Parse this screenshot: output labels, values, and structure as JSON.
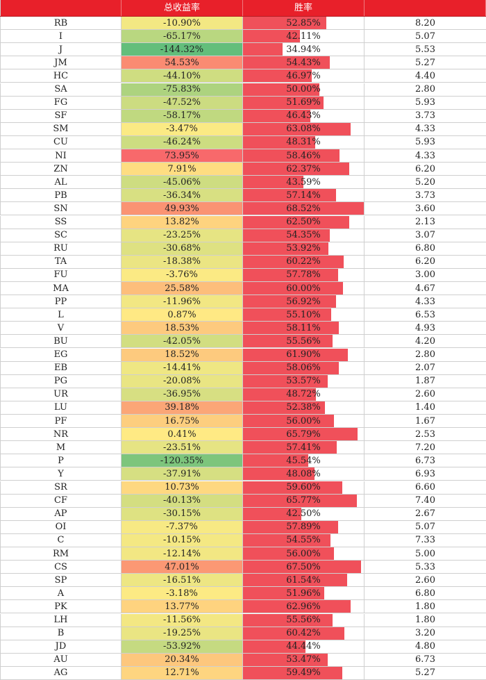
{
  "header": {
    "col0": "",
    "col1": "总收益率",
    "col2": "胜率",
    "col3": ""
  },
  "colors": {
    "header_bg": "#e8202a",
    "win_bar": "#f0505a",
    "return_scale": [
      "#63be7b",
      "#ffeb84",
      "#f8696b"
    ]
  },
  "rows": [
    {
      "code": "RB",
      "ret": "-10.90%",
      "ret_val": -10.9,
      "win": "52.85%",
      "win_val": 52.85,
      "val": "8.20"
    },
    {
      "code": "I",
      "ret": "-65.17%",
      "ret_val": -65.17,
      "win": "42.11%",
      "win_val": 42.11,
      "val": "5.07"
    },
    {
      "code": "J",
      "ret": "-144.32%",
      "ret_val": -144.32,
      "win": "34.94%",
      "win_val": 34.94,
      "val": "5.53"
    },
    {
      "code": "JM",
      "ret": "54.53%",
      "ret_val": 54.53,
      "win": "54.43%",
      "win_val": 54.43,
      "val": "5.27"
    },
    {
      "code": "HC",
      "ret": "-44.10%",
      "ret_val": -44.1,
      "win": "46.97%",
      "win_val": 46.97,
      "val": "4.40"
    },
    {
      "code": "SA",
      "ret": "-75.83%",
      "ret_val": -75.83,
      "win": "50.00%",
      "win_val": 50.0,
      "val": "2.80"
    },
    {
      "code": "FG",
      "ret": "-47.52%",
      "ret_val": -47.52,
      "win": "51.69%",
      "win_val": 51.69,
      "val": "5.93"
    },
    {
      "code": "SF",
      "ret": "-58.17%",
      "ret_val": -58.17,
      "win": "46.43%",
      "win_val": 46.43,
      "val": "3.73"
    },
    {
      "code": "SM",
      "ret": "-3.47%",
      "ret_val": -3.47,
      "win": "63.08%",
      "win_val": 63.08,
      "val": "4.33"
    },
    {
      "code": "CU",
      "ret": "-46.24%",
      "ret_val": -46.24,
      "win": "48.31%",
      "win_val": 48.31,
      "val": "5.93"
    },
    {
      "code": "NI",
      "ret": "73.95%",
      "ret_val": 73.95,
      "win": "58.46%",
      "win_val": 58.46,
      "val": "4.33"
    },
    {
      "code": "ZN",
      "ret": "7.91%",
      "ret_val": 7.91,
      "win": "62.37%",
      "win_val": 62.37,
      "val": "6.20"
    },
    {
      "code": "AL",
      "ret": "-45.06%",
      "ret_val": -45.06,
      "win": "43.59%",
      "win_val": 43.59,
      "val": "5.20"
    },
    {
      "code": "PB",
      "ret": "-36.34%",
      "ret_val": -36.34,
      "win": "57.14%",
      "win_val": 57.14,
      "val": "3.73"
    },
    {
      "code": "SN",
      "ret": "49.93%",
      "ret_val": 49.93,
      "win": "68.52%",
      "win_val": 68.52,
      "val": "3.60"
    },
    {
      "code": "SS",
      "ret": "13.82%",
      "ret_val": 13.82,
      "win": "62.50%",
      "win_val": 62.5,
      "val": "2.13"
    },
    {
      "code": "SC",
      "ret": "-23.25%",
      "ret_val": -23.25,
      "win": "54.35%",
      "win_val": 54.35,
      "val": "3.07"
    },
    {
      "code": "RU",
      "ret": "-30.68%",
      "ret_val": -30.68,
      "win": "53.92%",
      "win_val": 53.92,
      "val": "6.80"
    },
    {
      "code": "TA",
      "ret": "-18.38%",
      "ret_val": -18.38,
      "win": "60.22%",
      "win_val": 60.22,
      "val": "6.20"
    },
    {
      "code": "FU",
      "ret": "-3.76%",
      "ret_val": -3.76,
      "win": "57.78%",
      "win_val": 57.78,
      "val": "3.00"
    },
    {
      "code": "MA",
      "ret": "25.58%",
      "ret_val": 25.58,
      "win": "60.00%",
      "win_val": 60.0,
      "val": "4.67"
    },
    {
      "code": "PP",
      "ret": "-11.96%",
      "ret_val": -11.96,
      "win": "56.92%",
      "win_val": 56.92,
      "val": "4.33"
    },
    {
      "code": "L",
      "ret": "0.87%",
      "ret_val": 0.87,
      "win": "55.10%",
      "win_val": 55.1,
      "val": "6.53"
    },
    {
      "code": "V",
      "ret": "18.53%",
      "ret_val": 18.53,
      "win": "58.11%",
      "win_val": 58.11,
      "val": "4.93"
    },
    {
      "code": "BU",
      "ret": "-42.05%",
      "ret_val": -42.05,
      "win": "55.56%",
      "win_val": 55.56,
      "val": "4.20"
    },
    {
      "code": "EG",
      "ret": "18.52%",
      "ret_val": 18.52,
      "win": "61.90%",
      "win_val": 61.9,
      "val": "2.80"
    },
    {
      "code": "EB",
      "ret": "-14.41%",
      "ret_val": -14.41,
      "win": "58.06%",
      "win_val": 58.06,
      "val": "2.07"
    },
    {
      "code": "PG",
      "ret": "-20.08%",
      "ret_val": -20.08,
      "win": "53.57%",
      "win_val": 53.57,
      "val": "1.87"
    },
    {
      "code": "UR",
      "ret": "-36.95%",
      "ret_val": -36.95,
      "win": "48.72%",
      "win_val": 48.72,
      "val": "2.60"
    },
    {
      "code": "LU",
      "ret": "39.18%",
      "ret_val": 39.18,
      "win": "52.38%",
      "win_val": 52.38,
      "val": "1.40"
    },
    {
      "code": "PF",
      "ret": "16.75%",
      "ret_val": 16.75,
      "win": "56.00%",
      "win_val": 56.0,
      "val": "1.67"
    },
    {
      "code": "NR",
      "ret": "0.41%",
      "ret_val": 0.41,
      "win": "65.79%",
      "win_val": 65.79,
      "val": "2.53"
    },
    {
      "code": "M",
      "ret": "-23.51%",
      "ret_val": -23.51,
      "win": "57.41%",
      "win_val": 57.41,
      "val": "7.20"
    },
    {
      "code": "P",
      "ret": "-120.35%",
      "ret_val": -120.35,
      "win": "45.54%",
      "win_val": 45.54,
      "val": "6.73"
    },
    {
      "code": "Y",
      "ret": "-37.91%",
      "ret_val": -37.91,
      "win": "48.08%",
      "win_val": 48.08,
      "val": "6.93"
    },
    {
      "code": "SR",
      "ret": "10.73%",
      "ret_val": 10.73,
      "win": "59.60%",
      "win_val": 59.6,
      "val": "6.60"
    },
    {
      "code": "CF",
      "ret": "-40.13%",
      "ret_val": -40.13,
      "win": "65.77%",
      "win_val": 65.77,
      "val": "7.40"
    },
    {
      "code": "AP",
      "ret": "-30.15%",
      "ret_val": -30.15,
      "win": "42.50%",
      "win_val": 42.5,
      "val": "2.67"
    },
    {
      "code": "OI",
      "ret": "-7.37%",
      "ret_val": -7.37,
      "win": "57.89%",
      "win_val": 57.89,
      "val": "5.07"
    },
    {
      "code": "C",
      "ret": "-10.15%",
      "ret_val": -10.15,
      "win": "54.55%",
      "win_val": 54.55,
      "val": "7.33"
    },
    {
      "code": "RM",
      "ret": "-12.14%",
      "ret_val": -12.14,
      "win": "56.00%",
      "win_val": 56.0,
      "val": "5.00"
    },
    {
      "code": "CS",
      "ret": "47.01%",
      "ret_val": 47.01,
      "win": "67.50%",
      "win_val": 67.5,
      "val": "5.33"
    },
    {
      "code": "SP",
      "ret": "-16.51%",
      "ret_val": -16.51,
      "win": "61.54%",
      "win_val": 61.54,
      "val": "2.60"
    },
    {
      "code": "A",
      "ret": "-3.18%",
      "ret_val": -3.18,
      "win": "51.96%",
      "win_val": 51.96,
      "val": "6.80"
    },
    {
      "code": "PK",
      "ret": "13.77%",
      "ret_val": 13.77,
      "win": "62.96%",
      "win_val": 62.96,
      "val": "1.80"
    },
    {
      "code": "LH",
      "ret": "-11.56%",
      "ret_val": -11.56,
      "win": "55.56%",
      "win_val": 55.56,
      "val": "1.80"
    },
    {
      "code": "B",
      "ret": "-19.25%",
      "ret_val": -19.25,
      "win": "60.42%",
      "win_val": 60.42,
      "val": "3.20"
    },
    {
      "code": "JD",
      "ret": "-53.92%",
      "ret_val": -53.92,
      "win": "44.44%",
      "win_val": 44.44,
      "val": "4.80"
    },
    {
      "code": "AU",
      "ret": "20.34%",
      "ret_val": 20.34,
      "win": "53.47%",
      "win_val": 53.47,
      "val": "6.73"
    },
    {
      "code": "AG",
      "ret": "12.71%",
      "ret_val": 12.71,
      "win": "59.49%",
      "win_val": 59.49,
      "val": "5.27"
    }
  ]
}
